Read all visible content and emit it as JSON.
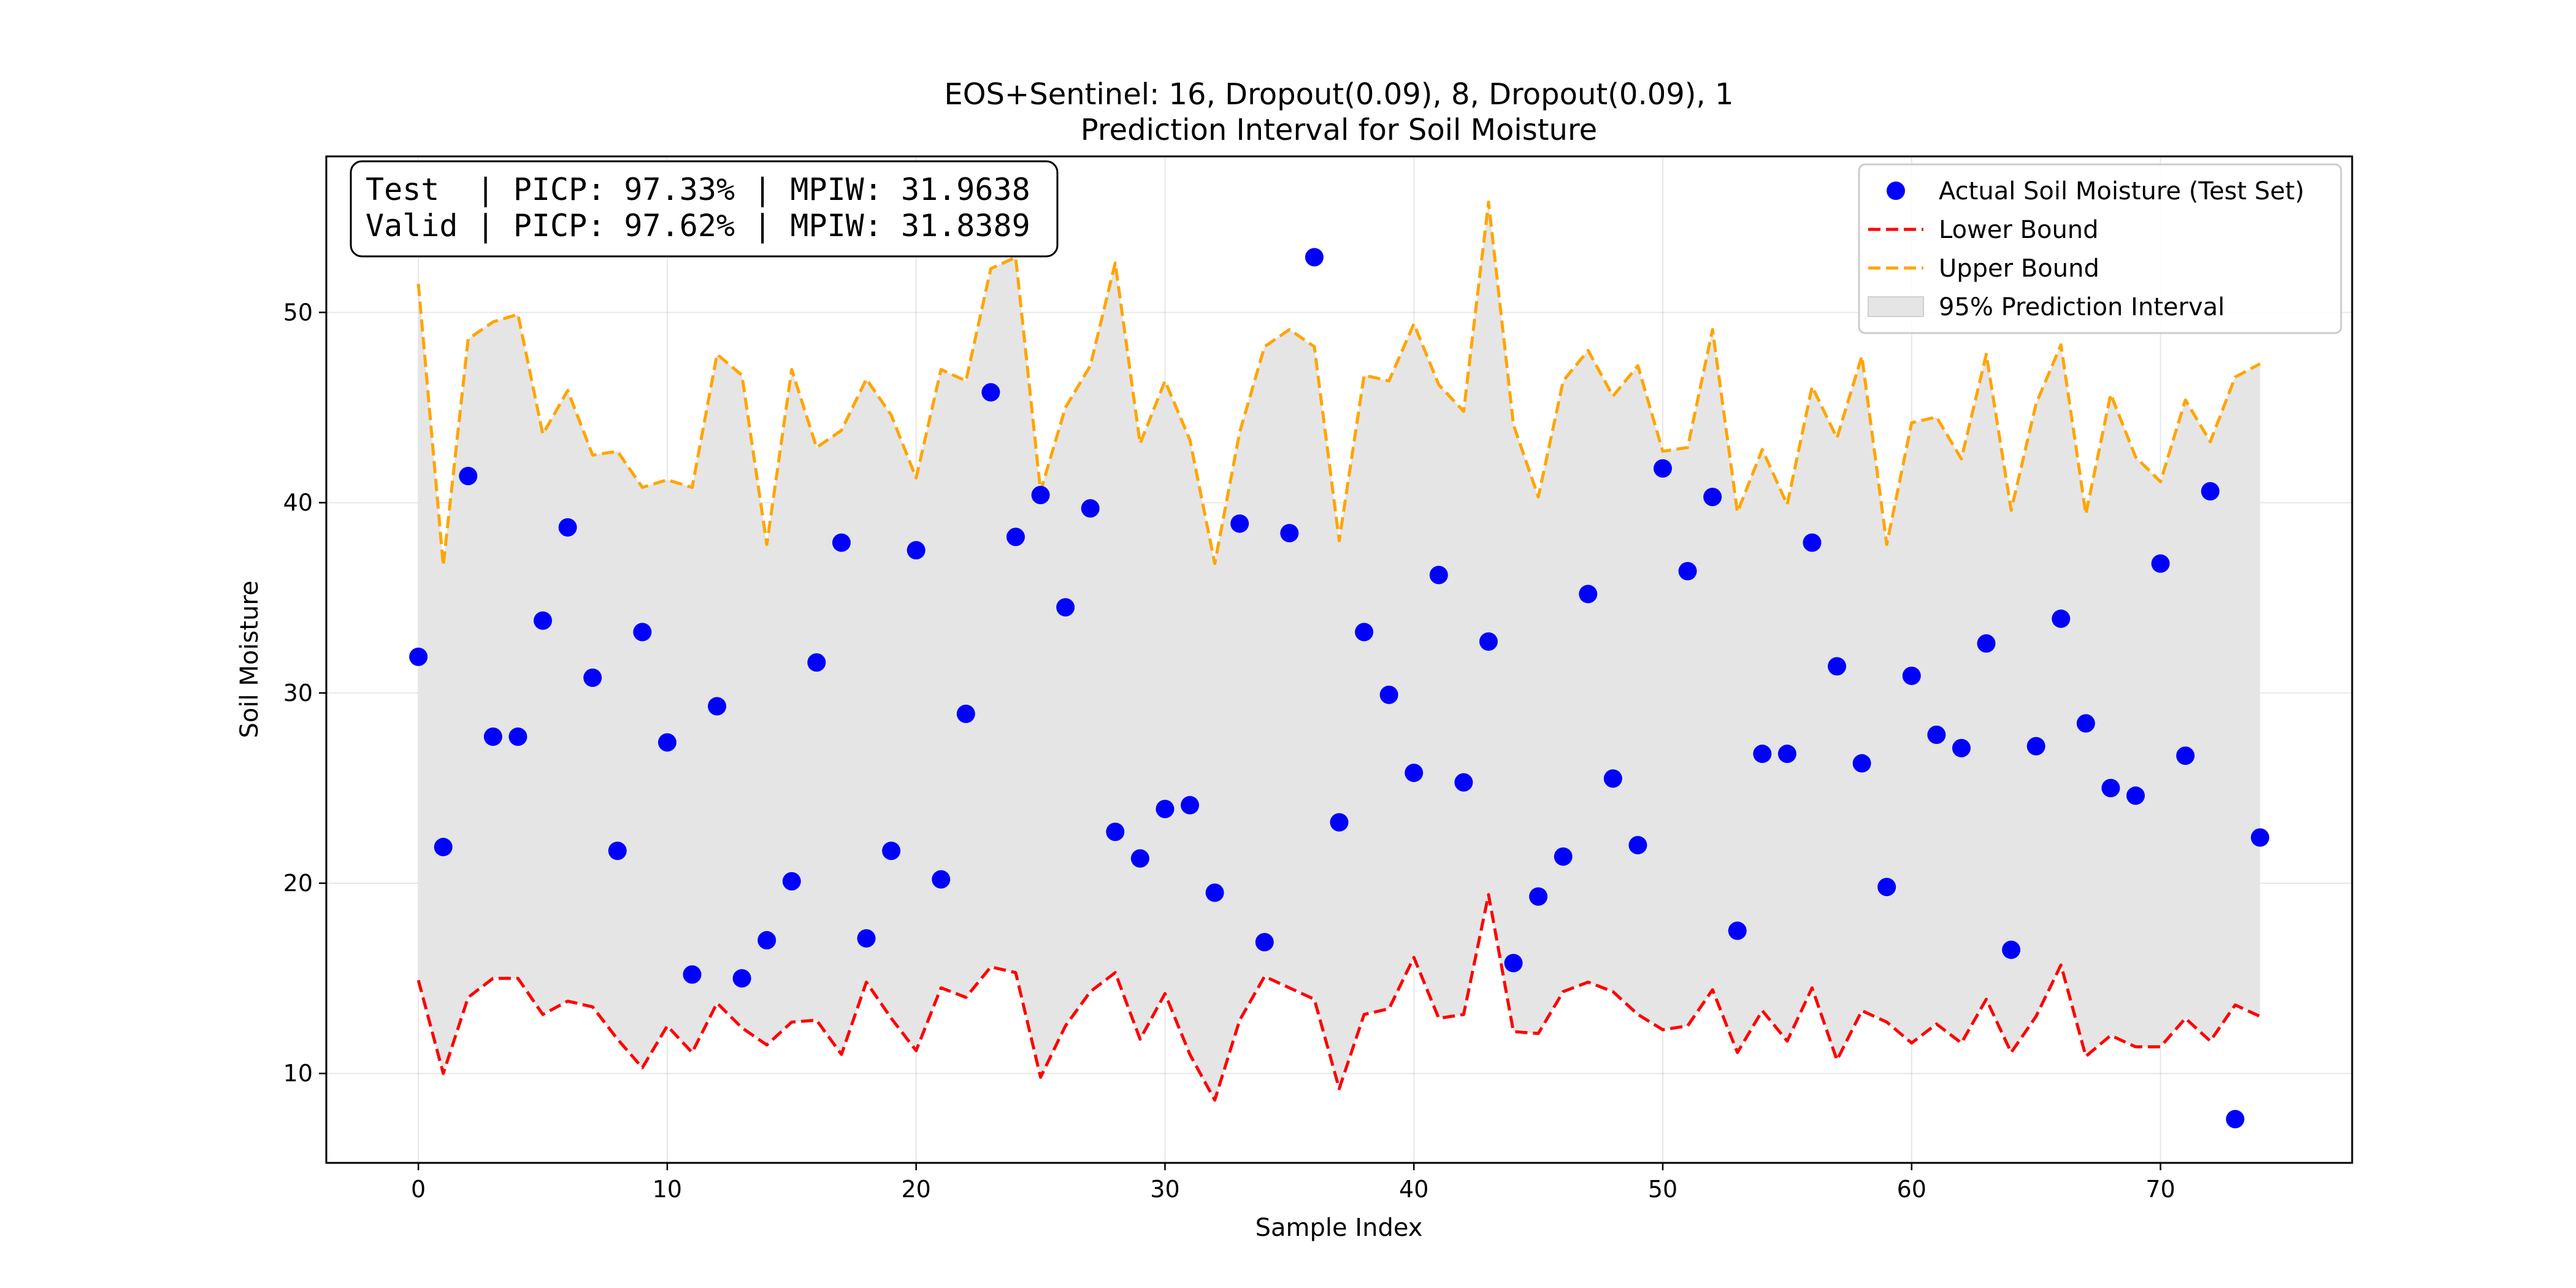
{
  "chart_data": {
    "type": "scatter",
    "title": "EOS+Sentinel: 16, Dropout(0.09), 8, Dropout(0.09), 1",
    "subtitle": "Prediction Interval for Soil Moisture",
    "xlabel": "Sample Index",
    "ylabel": "Soil Moisture",
    "xlim": [
      -3.7,
      77.7
    ],
    "ylim": [
      5.3,
      58.2
    ],
    "xticks": [
      0,
      10,
      20,
      30,
      40,
      50,
      60,
      70
    ],
    "yticks": [
      10,
      20,
      30,
      40,
      50
    ],
    "grid": true,
    "legend_position": "top-right",
    "stats_lines": [
      "Test  | PICP: 97.33% | MPIW: 31.9638",
      "Valid | PICP: 97.62% | MPIW: 31.8389"
    ],
    "colors": {
      "actual": "#0000ff",
      "lower": "#ff0000",
      "upper": "#ffa500",
      "band": "#e5e5e5"
    },
    "series": [
      {
        "name": "Actual Soil Moisture (Test Set)",
        "kind": "points",
        "values": [
          31.9,
          21.9,
          41.4,
          27.7,
          27.7,
          33.8,
          38.7,
          30.8,
          21.7,
          33.2,
          27.4,
          15.2,
          29.3,
          15.0,
          17.0,
          20.1,
          31.6,
          37.9,
          17.1,
          21.7,
          37.5,
          20.2,
          28.9,
          45.8,
          38.2,
          40.4,
          34.5,
          39.7,
          22.7,
          21.3,
          23.9,
          24.1,
          19.5,
          38.9,
          16.9,
          38.4,
          52.9,
          23.2,
          33.2,
          29.9,
          25.8,
          36.2,
          25.3,
          32.7,
          15.8,
          19.3,
          21.4,
          35.2,
          25.5,
          22.0,
          41.8,
          36.4,
          40.3,
          17.5,
          26.8,
          26.8,
          37.9,
          31.4,
          26.3,
          19.8,
          30.9,
          27.8,
          27.1,
          32.6,
          16.5,
          27.2,
          33.9,
          28.4,
          25.0,
          24.6,
          36.8,
          26.7,
          40.6,
          7.6,
          22.4
        ]
      },
      {
        "name": "Lower Bound",
        "kind": "line",
        "values": [
          14.9,
          10.0,
          14.0,
          15.0,
          15.0,
          13.1,
          13.8,
          13.5,
          11.8,
          10.3,
          12.5,
          11.1,
          13.7,
          12.4,
          11.5,
          12.7,
          12.8,
          11.0,
          14.8,
          12.9,
          11.2,
          14.5,
          14.0,
          15.6,
          15.3,
          9.8,
          12.5,
          14.3,
          15.3,
          11.8,
          14.2,
          11.0,
          8.6,
          12.8,
          15.1,
          14.5,
          13.9,
          9.2,
          13.1,
          13.4,
          16.1,
          12.9,
          13.1,
          19.4,
          12.2,
          12.1,
          14.3,
          14.8,
          14.3,
          13.1,
          12.3,
          12.5,
          14.4,
          11.1,
          13.3,
          11.7,
          14.5,
          10.7,
          13.3,
          12.7,
          11.6,
          12.6,
          11.6,
          13.9,
          11.1,
          13.0,
          15.7,
          10.9,
          12.0,
          11.4,
          11.4,
          12.9,
          11.7,
          13.6,
          13.0
        ]
      },
      {
        "name": "Upper Bound",
        "kind": "line",
        "values": [
          51.5,
          36.7,
          48.6,
          49.5,
          49.9,
          43.6,
          45.9,
          42.5,
          42.7,
          40.8,
          41.2,
          40.8,
          47.8,
          46.7,
          37.8,
          47.0,
          42.9,
          43.8,
          46.5,
          44.6,
          41.3,
          47.0,
          46.4,
          52.3,
          52.9,
          40.6,
          45.0,
          47.2,
          52.6,
          43.1,
          46.4,
          43.3,
          36.8,
          43.7,
          48.2,
          49.1,
          48.2,
          38.0,
          46.7,
          46.4,
          49.4,
          46.2,
          44.8,
          55.8,
          44.1,
          40.3,
          46.4,
          48.0,
          45.6,
          47.2,
          42.7,
          42.9,
          49.1,
          39.5,
          42.8,
          39.9,
          46.1,
          43.4,
          47.7,
          37.8,
          44.2,
          44.5,
          42.3,
          47.8,
          39.6,
          45.2,
          48.3,
          39.4,
          45.7,
          42.4,
          41.1,
          45.4,
          43.2,
          46.6,
          47.3
        ]
      },
      {
        "name": "95% Prediction Interval",
        "kind": "band",
        "between": [
          "Lower Bound",
          "Upper Bound"
        ]
      }
    ]
  }
}
